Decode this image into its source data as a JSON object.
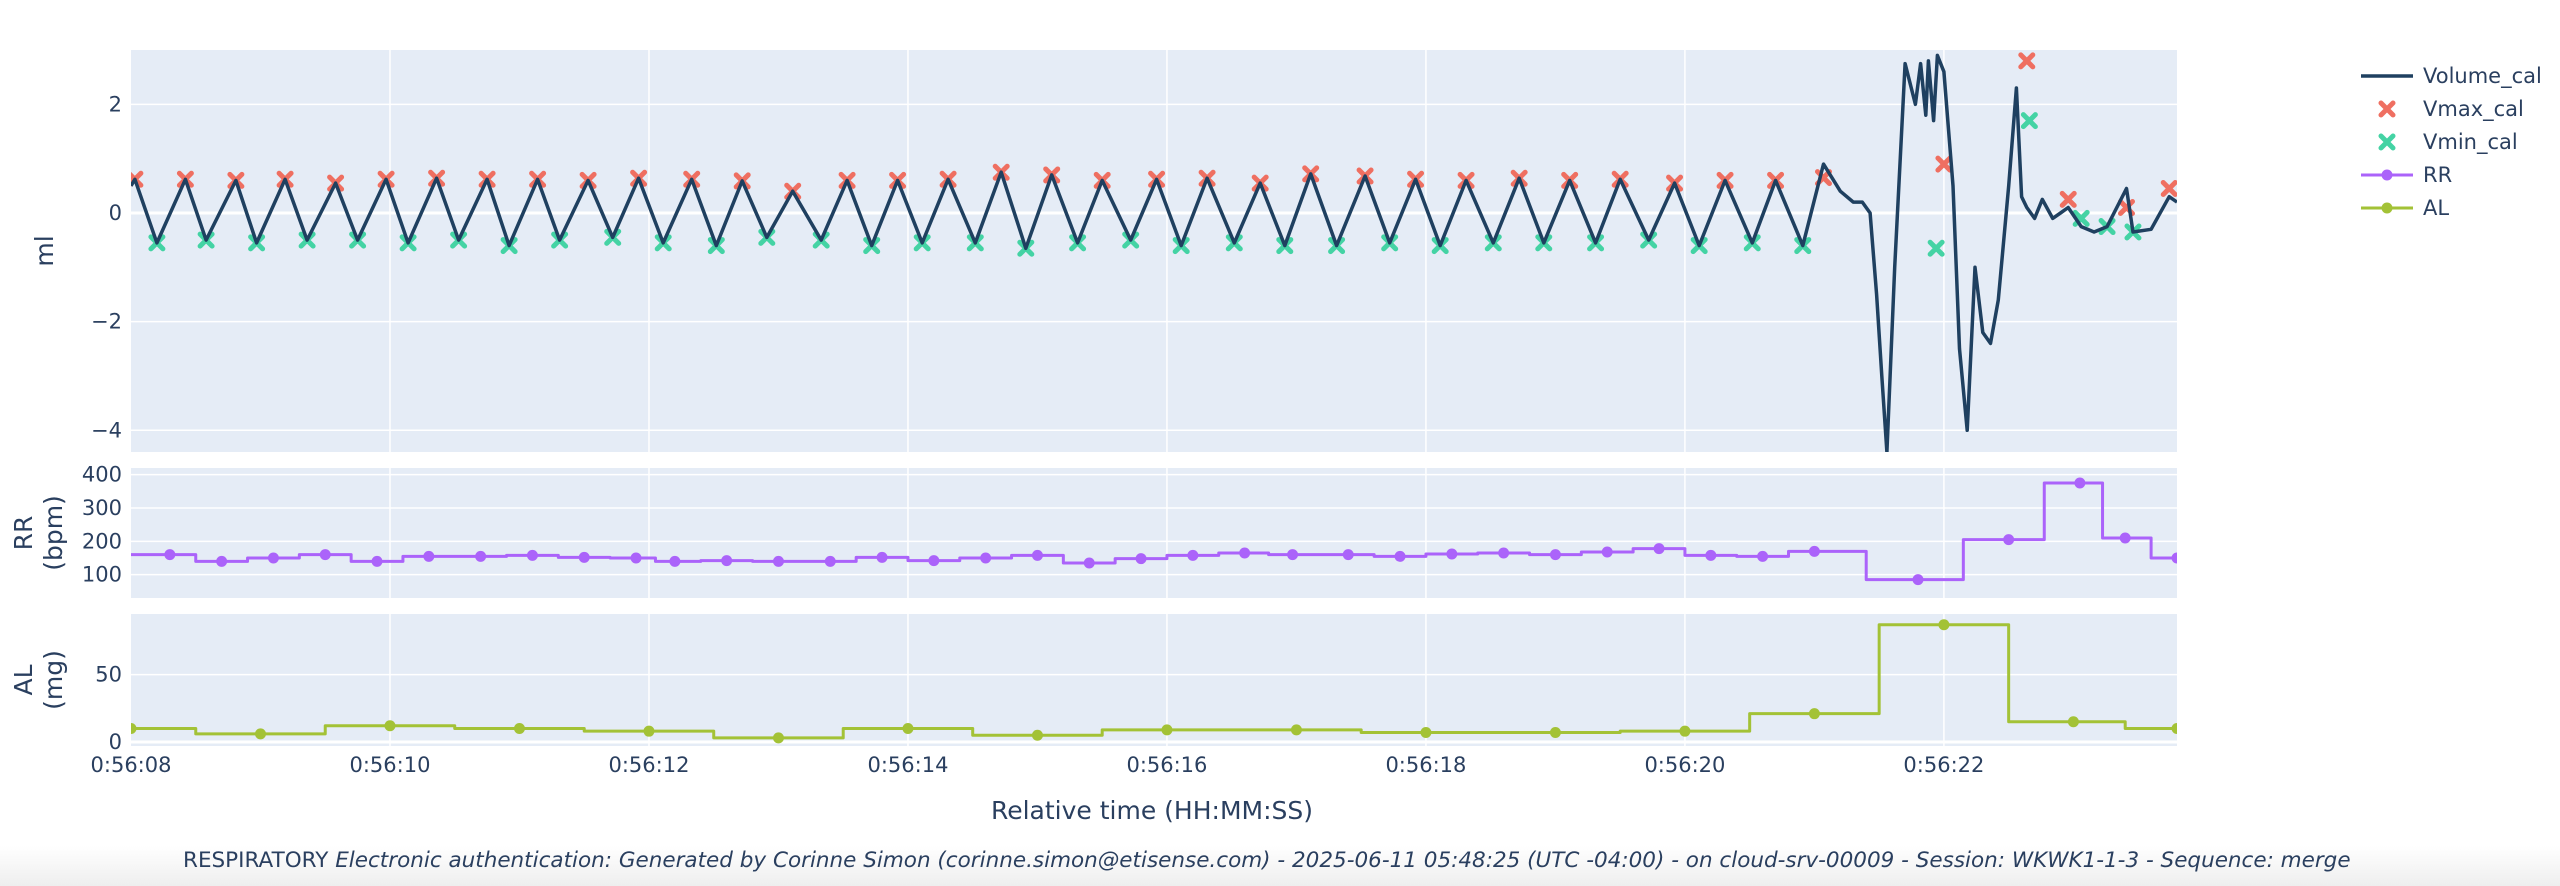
{
  "footer": {
    "label": "RESPIRATORY",
    "detail": "Electronic authentication: Generated by Corinne Simon (corinne.simon@etisense.com) - 2025-06-11 05:48:25 (UTC -04:00) - on cloud-srv-00009 - Session: WKWK1-1-3 - Sequence: merge"
  },
  "colors": {
    "plot_bg": "#e5ecf6",
    "grid": "#ffffff",
    "volume": "#1f4060",
    "vmax": "#ef6f61",
    "vmin": "#44d3a4",
    "rr": "#ab63fa",
    "al": "#a3c236"
  },
  "chart_data": {
    "type": "line",
    "shared_x": {
      "label": "Relative time (HH:MM:SS)",
      "range": [
        "0:56:08",
        "0:56:23.8"
      ],
      "ticks": [
        "0:56:08",
        "0:56:10",
        "0:56:12",
        "0:56:14",
        "0:56:16",
        "0:56:18",
        "0:56:20",
        "0:56:22"
      ]
    },
    "legend": {
      "position": "top-right, outside",
      "entries": [
        "Volume_cal",
        "Vmax_cal",
        "Vmin_cal",
        "RR",
        "AL"
      ]
    },
    "grid": true,
    "panels": [
      {
        "ylabel": "ml",
        "ylim": [
          -4.4,
          3.0
        ],
        "yticks": [
          "2",
          "0",
          "−2",
          "−4"
        ],
        "series": [
          {
            "name": "Vmax_cal",
            "marker": "x",
            "x": [
              "0:56:08.03",
              "0:56:08.42",
              "0:56:08.81",
              "0:56:09.19",
              "0:56:09.58",
              "0:56:09.97",
              "0:56:10.36",
              "0:56:10.75",
              "0:56:11.14",
              "0:56:11.53",
              "0:56:11.92",
              "0:56:12.33",
              "0:56:12.72",
              "0:56:13.11",
              "0:56:13.53",
              "0:56:13.92",
              "0:56:14.31",
              "0:56:14.72",
              "0:56:15.11",
              "0:56:15.50",
              "0:56:15.92",
              "0:56:16.31",
              "0:56:16.72",
              "0:56:17.11",
              "0:56:17.53",
              "0:56:17.92",
              "0:56:18.31",
              "0:56:18.72",
              "0:56:19.11",
              "0:56:19.50",
              "0:56:19.92",
              "0:56:20.31",
              "0:56:20.70",
              "0:56:21.07",
              "0:56:22.00",
              "0:56:22.64",
              "0:56:22.96",
              "0:56:23.41",
              "0:56:23.74"
            ],
            "y": [
              0.62,
              0.62,
              0.6,
              0.62,
              0.55,
              0.62,
              0.64,
              0.62,
              0.62,
              0.6,
              0.64,
              0.62,
              0.59,
              0.4,
              0.6,
              0.6,
              0.62,
              0.75,
              0.7,
              0.6,
              0.62,
              0.64,
              0.55,
              0.72,
              0.68,
              0.62,
              0.6,
              0.64,
              0.6,
              0.62,
              0.55,
              0.6,
              0.6,
              0.65,
              0.9,
              2.8,
              0.25,
              0.1,
              0.45
            ]
          },
          {
            "name": "Vmin_cal",
            "marker": "x",
            "x": [
              "0:56:08.20",
              "0:56:08.58",
              "0:56:08.97",
              "0:56:09.36",
              "0:56:09.75",
              "0:56:10.14",
              "0:56:10.53",
              "0:56:10.92",
              "0:56:11.31",
              "0:56:11.72",
              "0:56:12.11",
              "0:56:12.52",
              "0:56:12.91",
              "0:56:13.33",
              "0:56:13.72",
              "0:56:14.11",
              "0:56:14.52",
              "0:56:14.91",
              "0:56:15.31",
              "0:56:15.72",
              "0:56:16.11",
              "0:56:16.52",
              "0:56:16.91",
              "0:56:17.31",
              "0:56:17.72",
              "0:56:18.11",
              "0:56:18.52",
              "0:56:18.91",
              "0:56:19.31",
              "0:56:19.72",
              "0:56:20.11",
              "0:56:20.52",
              "0:56:20.91",
              "0:56:21.94",
              "0:56:22.66",
              "0:56:23.06",
              "0:56:23.26",
              "0:56:23.46"
            ],
            "y": [
              -0.55,
              -0.5,
              -0.55,
              -0.5,
              -0.5,
              -0.55,
              -0.5,
              -0.6,
              -0.5,
              -0.45,
              -0.55,
              -0.6,
              -0.45,
              -0.5,
              -0.6,
              -0.55,
              -0.55,
              -0.65,
              -0.55,
              -0.5,
              -0.6,
              -0.55,
              -0.6,
              -0.6,
              -0.55,
              -0.6,
              -0.55,
              -0.55,
              -0.55,
              -0.5,
              -0.6,
              -0.55,
              -0.6,
              -0.65,
              1.7,
              -0.1,
              -0.25,
              -0.35
            ]
          },
          {
            "name": "Volume_cal",
            "line": true,
            "x": [
              "0:56:08.00",
              "0:56:08.03",
              "0:56:08.20",
              "0:56:08.42",
              "0:56:08.58",
              "0:56:08.81",
              "0:56:08.97",
              "0:56:09.19",
              "0:56:09.36",
              "0:56:09.58",
              "0:56:09.75",
              "0:56:09.97",
              "0:56:10.14",
              "0:56:10.36",
              "0:56:10.53",
              "0:56:10.75",
              "0:56:10.92",
              "0:56:11.14",
              "0:56:11.31",
              "0:56:11.53",
              "0:56:11.72",
              "0:56:11.92",
              "0:56:12.11",
              "0:56:12.33",
              "0:56:12.52",
              "0:56:12.72",
              "0:56:12.91",
              "0:56:13.11",
              "0:56:13.33",
              "0:56:13.53",
              "0:56:13.72",
              "0:56:13.92",
              "0:56:14.11",
              "0:56:14.31",
              "0:56:14.52",
              "0:56:14.72",
              "0:56:14.91",
              "0:56:15.11",
              "0:56:15.31",
              "0:56:15.50",
              "0:56:15.72",
              "0:56:15.92",
              "0:56:16.11",
              "0:56:16.31",
              "0:56:16.52",
              "0:56:16.72",
              "0:56:16.91",
              "0:56:17.11",
              "0:56:17.31",
              "0:56:17.53",
              "0:56:17.72",
              "0:56:17.92",
              "0:56:18.11",
              "0:56:18.31",
              "0:56:18.52",
              "0:56:18.72",
              "0:56:18.91",
              "0:56:19.11",
              "0:56:19.31",
              "0:56:19.50",
              "0:56:19.72",
              "0:56:19.92",
              "0:56:20.11",
              "0:56:20.31",
              "0:56:20.52",
              "0:56:20.70",
              "0:56:20.91",
              "0:56:21.07",
              "0:56:21.20",
              "0:56:21.30",
              "0:56:21.37",
              "0:56:21.43",
              "0:56:21.48",
              "0:56:21.52",
              "0:56:21.56",
              "0:56:21.62",
              "0:56:21.70",
              "0:56:21.78",
              "0:56:21.82",
              "0:56:21.86",
              "0:56:21.88",
              "0:56:21.92",
              "0:56:21.95",
              "0:56:22.00",
              "0:56:22.07",
              "0:56:22.12",
              "0:56:22.18",
              "0:56:22.24",
              "0:56:22.30",
              "0:56:22.36",
              "0:56:22.42",
              "0:56:22.50",
              "0:56:22.56",
              "0:56:22.60",
              "0:56:22.64",
              "0:56:22.70",
              "0:56:22.76",
              "0:56:22.84",
              "0:56:22.90",
              "0:56:22.96",
              "0:56:23.06",
              "0:56:23.16",
              "0:56:23.26",
              "0:56:23.41",
              "0:56:23.46",
              "0:56:23.60",
              "0:56:23.74",
              "0:56:23.80"
            ],
            "y": [
              0.5,
              0.62,
              -0.55,
              0.62,
              -0.5,
              0.6,
              -0.55,
              0.62,
              -0.5,
              0.55,
              -0.5,
              0.62,
              -0.55,
              0.64,
              -0.5,
              0.62,
              -0.6,
              0.62,
              -0.5,
              0.6,
              -0.45,
              0.64,
              -0.55,
              0.62,
              -0.6,
              0.59,
              -0.45,
              0.4,
              -0.5,
              0.6,
              -0.6,
              0.6,
              -0.55,
              0.62,
              -0.55,
              0.75,
              -0.65,
              0.7,
              -0.55,
              0.6,
              -0.5,
              0.62,
              -0.6,
              0.64,
              -0.55,
              0.55,
              -0.6,
              0.72,
              -0.6,
              0.68,
              -0.55,
              0.62,
              -0.6,
              0.6,
              -0.55,
              0.64,
              -0.55,
              0.6,
              -0.55,
              0.62,
              -0.5,
              0.55,
              -0.6,
              0.6,
              -0.55,
              0.6,
              -0.6,
              0.9,
              0.4,
              0.2,
              0.2,
              0.0,
              -1.5,
              -3.0,
              -4.4,
              -1.0,
              2.75,
              2.0,
              2.75,
              1.8,
              2.8,
              1.7,
              2.9,
              2.6,
              0.5,
              -2.5,
              -4.0,
              -1.0,
              -2.2,
              -2.4,
              -1.6,
              0.5,
              2.3,
              0.3,
              0.1,
              -0.1,
              0.25,
              -0.1,
              0.0,
              0.1,
              -0.25,
              -0.35,
              -0.25,
              0.45,
              -0.35,
              -0.3,
              0.3,
              0.2
            ]
          }
        ]
      },
      {
        "ylabel": "RR\n(bpm)",
        "ylim": [
          30,
          420
        ],
        "yticks": [
          "400",
          "300",
          "200",
          "100"
        ],
        "series": [
          {
            "name": "RR",
            "line": true,
            "shape": "step",
            "marker": "dot",
            "x": [
              "0:56:08.30",
              "0:56:08.70",
              "0:56:09.10",
              "0:56:09.50",
              "0:56:09.90",
              "0:56:10.30",
              "0:56:10.70",
              "0:56:11.10",
              "0:56:11.50",
              "0:56:11.90",
              "0:56:12.20",
              "0:56:12.60",
              "0:56:13.00",
              "0:56:13.40",
              "0:56:13.80",
              "0:56:14.20",
              "0:56:14.60",
              "0:56:15.00",
              "0:56:15.40",
              "0:56:15.80",
              "0:56:16.20",
              "0:56:16.60",
              "0:56:16.97",
              "0:56:17.40",
              "0:56:17.80",
              "0:56:18.20",
              "0:56:18.60",
              "0:56:19.00",
              "0:56:19.40",
              "0:56:19.80",
              "0:56:20.20",
              "0:56:20.60",
              "0:56:21.00",
              "0:56:21.80",
              "0:56:22.50",
              "0:56:23.05",
              "0:56:23.40",
              "0:56:23.80"
            ],
            "y": [
              160,
              140,
              150,
              160,
              140,
              155,
              155,
              158,
              152,
              150,
              140,
              142,
              140,
              140,
              152,
              142,
              150,
              158,
              135,
              148,
              158,
              165,
              160,
              160,
              155,
              162,
              165,
              160,
              168,
              178,
              158,
              155,
              170,
              85,
              205,
              375,
              210,
              150
            ]
          }
        ]
      },
      {
        "ylabel": "AL\n(mg)",
        "ylim": [
          -3,
          95
        ],
        "yticks": [
          "50",
          "0"
        ],
        "series": [
          {
            "name": "AL",
            "line": true,
            "shape": "step",
            "marker": "dot",
            "x": [
              "0:56:08.00",
              "0:56:09.00",
              "0:56:10.00",
              "0:56:11.00",
              "0:56:12.00",
              "0:56:13.00",
              "0:56:14.00",
              "0:56:15.00",
              "0:56:16.00",
              "0:56:17.00",
              "0:56:18.00",
              "0:56:19.00",
              "0:56:20.00",
              "0:56:21.00",
              "0:56:22.00",
              "0:56:23.00",
              "0:56:23.80"
            ],
            "y": [
              10,
              6,
              12,
              10,
              8,
              3,
              10,
              5,
              9,
              9,
              7,
              7,
              8,
              21,
              87,
              15,
              10
            ]
          }
        ]
      }
    ]
  }
}
